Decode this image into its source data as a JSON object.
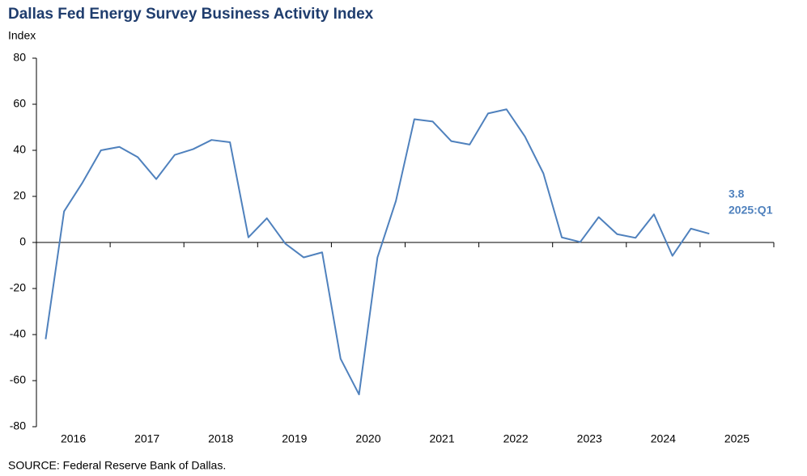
{
  "chart_data": {
    "type": "line",
    "title": "Dallas Fed Energy Survey Business Activity Index",
    "y_label": "Index",
    "source": "SOURCE:  Federal Reserve  Bank of Dallas.",
    "years": [
      "2016",
      "2017",
      "2018",
      "2019",
      "2020",
      "2021",
      "2022",
      "2023",
      "2024",
      "2025"
    ],
    "categories": [
      null,
      null,
      null,
      null,
      null,
      null,
      null,
      null,
      null,
      null,
      null,
      null,
      null,
      null,
      null,
      null,
      null,
      null,
      null,
      null,
      null,
      null,
      null,
      null,
      null,
      null,
      null,
      null,
      null,
      null,
      null,
      null,
      null,
      null,
      null,
      null,
      null,
      null,
      null,
      null
    ],
    "series": [
      {
        "name": "Business Activity Index",
        "color": "#4f81bd",
        "values": [
          -42,
          13.5,
          26,
          40,
          41.5,
          37,
          27.5,
          38,
          40.5,
          44.5,
          43.5,
          2.2,
          10.5,
          -0.5,
          -6.5,
          -4.3,
          -50.5,
          -66,
          -6.5,
          18,
          53.5,
          52.5,
          44,
          42.5,
          56,
          57.8,
          46,
          30,
          2.2,
          0.2,
          11,
          3.6,
          2,
          12.2,
          -5.8,
          6,
          3.8,
          null,
          null,
          null
        ]
      }
    ],
    "annotation": "2025:Q1",
    "ylim": [
      -80,
      80
    ],
    "yticks": [
      -80,
      -60,
      -40,
      -20,
      0,
      20,
      40,
      60,
      80
    ]
  }
}
